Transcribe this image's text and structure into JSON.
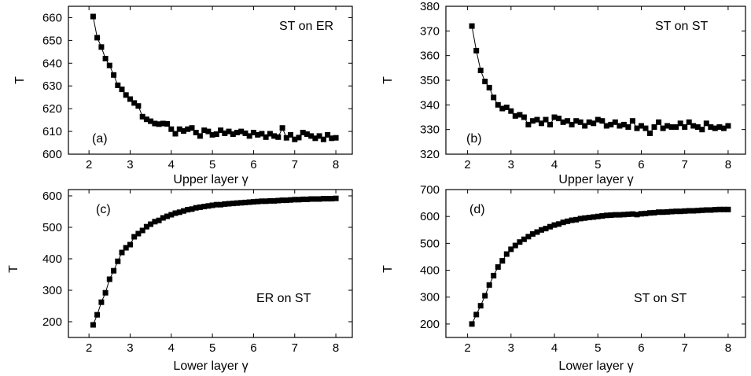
{
  "chart_data": [
    {
      "type": "line",
      "panel": "(a)",
      "annotation": "ST on ER",
      "ylabel": "T",
      "xlabel": "Upper layer γ",
      "xlim": [
        1.5,
        8.4
      ],
      "ylim": [
        600,
        665
      ],
      "xticks": [
        2,
        3,
        4,
        5,
        6,
        7,
        8
      ],
      "yticks": [
        600,
        610,
        620,
        630,
        640,
        650,
        660
      ],
      "marker": "square",
      "series": [
        {
          "x": [
            2.1,
            2.2,
            2.3,
            2.4,
            2.5,
            2.6,
            2.7,
            2.8,
            2.9,
            3.0,
            3.1,
            3.2,
            3.3,
            3.4,
            3.5,
            3.6,
            3.7,
            3.8,
            3.9,
            4.0,
            4.1,
            4.2,
            4.3,
            4.4,
            4.5,
            4.6,
            4.7,
            4.8,
            4.9,
            5.0,
            5.1,
            5.2,
            5.3,
            5.4,
            5.5,
            5.6,
            5.7,
            5.8,
            5.9,
            6.0,
            6.1,
            6.2,
            6.3,
            6.4,
            6.5,
            6.6,
            6.7,
            6.8,
            6.9,
            7.0,
            7.1,
            7.2,
            7.3,
            7.4,
            7.5,
            7.6,
            7.7,
            7.8,
            7.9,
            8.0
          ],
          "y": [
            660.5,
            651.2,
            647.1,
            642.0,
            639.0,
            634.8,
            630.3,
            628.5,
            626.0,
            624.2,
            622.5,
            621.2,
            616.5,
            615.3,
            614.5,
            613.5,
            613.2,
            613.5,
            613.3,
            611.0,
            609.0,
            611.0,
            610.2,
            611.0,
            611.5,
            609.5,
            608.0,
            610.5,
            610.0,
            608.5,
            608.8,
            610.5,
            609.2,
            610.0,
            608.8,
            609.5,
            610.0,
            609.2,
            608.0,
            609.5,
            608.5,
            609.0,
            607.5,
            609.0,
            608.0,
            607.5,
            611.5,
            607.2,
            608.5,
            606.5,
            607.3,
            609.5,
            608.8,
            608.0,
            607.0,
            608.0,
            606.5,
            608.5,
            607.0,
            607.2
          ]
        }
      ]
    },
    {
      "type": "line",
      "panel": "(b)",
      "annotation": "ST on ST",
      "ylabel": "T",
      "xlabel": "Upper layer γ",
      "xlim": [
        1.5,
        8.4
      ],
      "ylim": [
        320,
        380
      ],
      "xticks": [
        2,
        3,
        4,
        5,
        6,
        7,
        8
      ],
      "yticks": [
        320,
        330,
        340,
        350,
        360,
        370,
        380
      ],
      "marker": "square",
      "series": [
        {
          "x": [
            2.1,
            2.2,
            2.3,
            2.4,
            2.5,
            2.6,
            2.7,
            2.8,
            2.9,
            3.0,
            3.1,
            3.2,
            3.3,
            3.4,
            3.5,
            3.6,
            3.7,
            3.8,
            3.9,
            4.0,
            4.1,
            4.2,
            4.3,
            4.4,
            4.5,
            4.6,
            4.7,
            4.8,
            4.9,
            5.0,
            5.1,
            5.2,
            5.3,
            5.4,
            5.5,
            5.6,
            5.7,
            5.8,
            5.9,
            6.0,
            6.1,
            6.2,
            6.3,
            6.4,
            6.5,
            6.6,
            6.7,
            6.8,
            6.9,
            7.0,
            7.1,
            7.2,
            7.3,
            7.4,
            7.5,
            7.6,
            7.7,
            7.8,
            7.9,
            8.0
          ],
          "y": [
            372.0,
            362.0,
            354.0,
            349.5,
            347.0,
            343.0,
            340.0,
            338.5,
            339.0,
            337.5,
            335.5,
            336.0,
            335.0,
            332.0,
            333.5,
            334.0,
            332.5,
            334.0,
            332.0,
            335.0,
            334.5,
            333.0,
            333.5,
            332.0,
            333.5,
            333.0,
            331.5,
            333.0,
            332.5,
            334.0,
            333.5,
            331.5,
            332.0,
            333.0,
            331.5,
            332.0,
            331.0,
            333.5,
            330.5,
            331.5,
            330.5,
            328.5,
            331.0,
            333.0,
            330.5,
            331.5,
            331.0,
            331.0,
            332.5,
            331.0,
            333.0,
            331.5,
            331.0,
            330.0,
            332.5,
            331.0,
            330.5,
            331.0,
            330.5,
            331.5
          ]
        }
      ]
    },
    {
      "type": "line",
      "panel": "(c)",
      "annotation": "ER on ST",
      "ylabel": "T",
      "xlabel": "Lower layer γ",
      "xlim": [
        1.5,
        8.4
      ],
      "ylim": [
        150,
        620
      ],
      "xticks": [
        2,
        3,
        4,
        5,
        6,
        7,
        8
      ],
      "yticks": [
        200,
        300,
        400,
        500,
        600
      ],
      "marker": "square",
      "series": [
        {
          "x": [
            2.1,
            2.2,
            2.3,
            2.4,
            2.5,
            2.6,
            2.7,
            2.8,
            2.9,
            3.0,
            3.1,
            3.2,
            3.3,
            3.4,
            3.5,
            3.6,
            3.7,
            3.8,
            3.9,
            4.0,
            4.1,
            4.2,
            4.3,
            4.4,
            4.5,
            4.6,
            4.7,
            4.8,
            4.9,
            5.0,
            5.1,
            5.2,
            5.3,
            5.4,
            5.5,
            5.6,
            5.7,
            5.8,
            5.9,
            6.0,
            6.1,
            6.2,
            6.3,
            6.4,
            6.5,
            6.6,
            6.7,
            6.8,
            6.9,
            7.0,
            7.1,
            7.2,
            7.3,
            7.4,
            7.5,
            7.6,
            7.7,
            7.8,
            7.9,
            8.0
          ],
          "y": [
            190,
            222,
            262,
            292,
            335,
            362,
            392,
            420,
            435,
            445,
            470,
            480,
            490,
            502,
            510,
            518,
            522,
            530,
            535,
            540,
            545,
            548,
            552,
            556,
            558,
            562,
            564,
            566,
            568,
            570,
            572,
            572,
            574,
            575,
            576,
            577,
            578,
            579,
            580,
            581,
            582,
            583,
            583,
            584,
            584,
            585,
            586,
            586,
            587,
            588,
            588,
            589,
            589,
            590,
            590,
            590,
            591,
            591,
            591,
            592
          ]
        }
      ]
    },
    {
      "type": "line",
      "panel": "(d)",
      "annotation": "ST on ST",
      "ylabel": "T",
      "xlabel": "Lower layer γ",
      "xlim": [
        1.5,
        8.4
      ],
      "ylim": [
        150,
        700
      ],
      "xticks": [
        2,
        3,
        4,
        5,
        6,
        7,
        8
      ],
      "yticks": [
        200,
        300,
        400,
        500,
        600,
        700
      ],
      "marker": "square",
      "series": [
        {
          "x": [
            2.1,
            2.2,
            2.3,
            2.4,
            2.5,
            2.6,
            2.7,
            2.8,
            2.9,
            3.0,
            3.1,
            3.2,
            3.3,
            3.4,
            3.5,
            3.6,
            3.7,
            3.8,
            3.9,
            4.0,
            4.1,
            4.2,
            4.3,
            4.4,
            4.5,
            4.6,
            4.7,
            4.8,
            4.9,
            5.0,
            5.1,
            5.2,
            5.3,
            5.4,
            5.5,
            5.6,
            5.7,
            5.8,
            5.9,
            6.0,
            6.1,
            6.2,
            6.3,
            6.4,
            6.5,
            6.6,
            6.7,
            6.8,
            6.9,
            7.0,
            7.1,
            7.2,
            7.3,
            7.4,
            7.5,
            7.6,
            7.7,
            7.8,
            7.9,
            8.0
          ],
          "y": [
            200,
            235,
            268,
            305,
            345,
            380,
            412,
            435,
            460,
            478,
            492,
            505,
            515,
            525,
            535,
            542,
            550,
            555,
            562,
            568,
            572,
            578,
            582,
            586,
            588,
            592,
            594,
            596,
            598,
            600,
            602,
            604,
            605,
            606,
            606,
            607,
            608,
            609,
            607,
            610,
            611,
            613,
            614,
            616,
            616,
            617,
            618,
            619,
            619,
            620,
            621,
            621,
            622,
            623,
            624,
            624,
            625,
            626,
            626,
            626
          ]
        }
      ]
    }
  ]
}
